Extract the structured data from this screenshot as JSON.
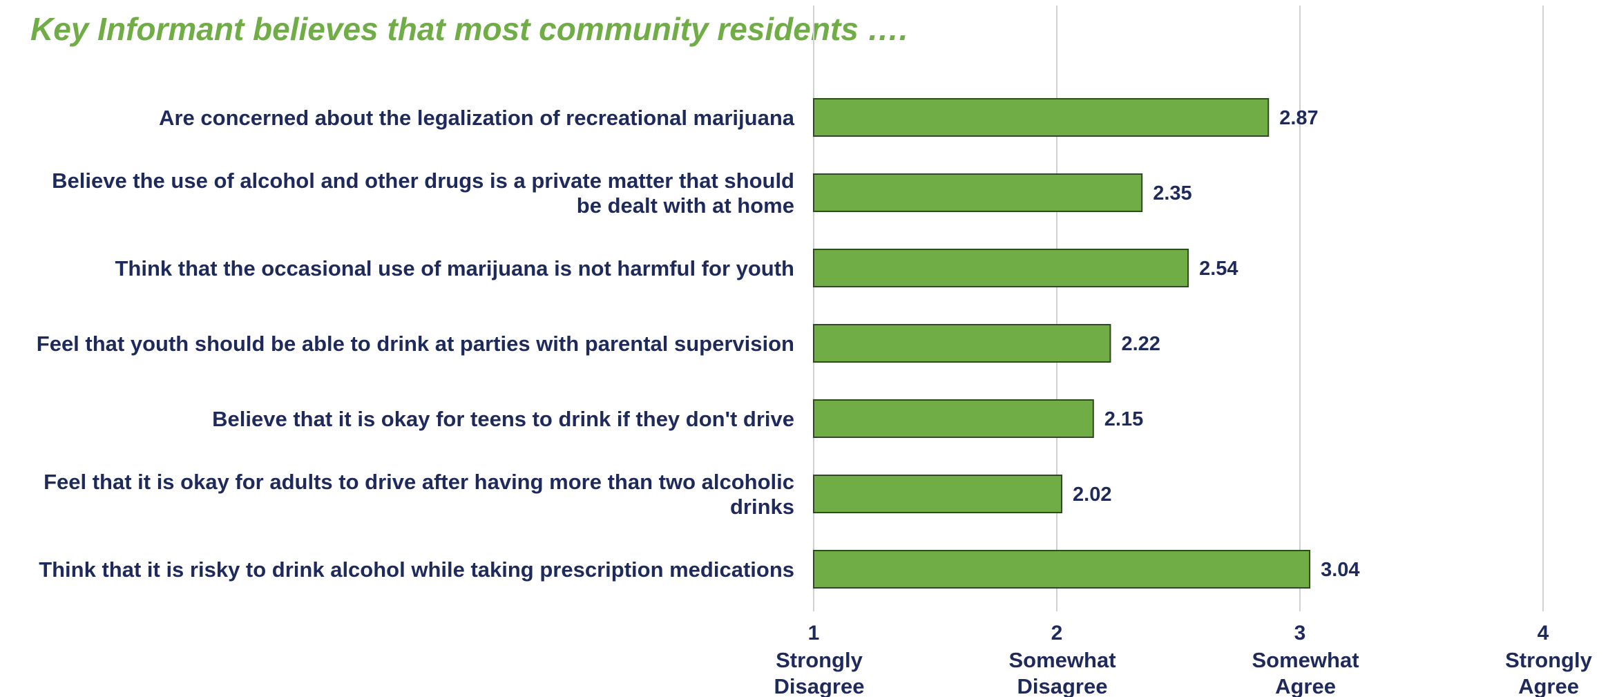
{
  "colors": {
    "title": "#70AD47",
    "bar_fill": "#70AD47",
    "bar_stroke": "#2E4B1E",
    "text": "#1F2A5C",
    "grid": "#D0D0D0"
  },
  "chart_data": {
    "type": "bar",
    "orientation": "horizontal",
    "title": "Key Informant believes that most community residents ….",
    "categories": [
      [
        "Are concerned about the legalization of recreational marijuana"
      ],
      [
        "Believe the use of alcohol and other drugs is a private matter that should",
        "be dealt with at home"
      ],
      [
        "Think that the occasional use of marijuana is not harmful for youth"
      ],
      [
        "Feel that youth should be able to drink at parties with parental supervision"
      ],
      [
        "Believe that it is okay for teens to drink if they don't drive"
      ],
      [
        "Feel that it is okay for adults to drive after having more than two alcoholic",
        "drinks"
      ],
      [
        "Think that it is risky to drink alcohol while taking prescription medications"
      ]
    ],
    "values": [
      2.87,
      2.35,
      2.54,
      2.22,
      2.15,
      2.02,
      3.04
    ],
    "value_labels": [
      "2.87",
      "2.35",
      "2.54",
      "2.22",
      "2.15",
      "2.02",
      "3.04"
    ],
    "xlim": [
      1,
      4
    ],
    "ticks": [
      {
        "value": 1,
        "number": "1",
        "label": [
          "Strongly",
          "Disagree"
        ]
      },
      {
        "value": 2,
        "number": "2",
        "label": [
          "Somewhat",
          "Disagree"
        ]
      },
      {
        "value": 3,
        "number": "3",
        "label": [
          "Somewhat",
          "Agree"
        ]
      },
      {
        "value": 4,
        "number": "4",
        "label": [
          "Strongly",
          "Agree"
        ]
      }
    ],
    "grid": true,
    "legend": "none"
  }
}
